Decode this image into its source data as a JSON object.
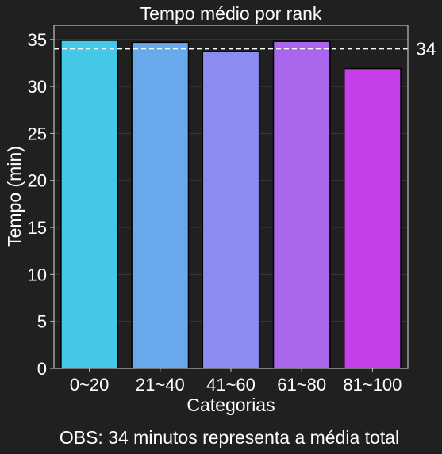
{
  "chart_data": {
    "type": "bar",
    "title": "Tempo médio por rank",
    "xlabel": "Categorias",
    "ylabel": "Tempo (min)",
    "categories": [
      "0~20",
      "21~40",
      "41~60",
      "61~80",
      "81~100"
    ],
    "values": [
      34.9,
      34.7,
      33.7,
      34.8,
      31.9
    ],
    "bar_colors": [
      "#44C8E8",
      "#68A9EC",
      "#8C8CF0",
      "#AB66EE",
      "#C640EA"
    ],
    "ylim": [
      0,
      36.5
    ],
    "yticks": [
      0,
      5,
      10,
      15,
      20,
      25,
      30,
      35
    ],
    "grid": true,
    "reference_line": {
      "value": 34,
      "label": "34"
    },
    "footnote": "OBS: 34 minutos representa a média total"
  }
}
